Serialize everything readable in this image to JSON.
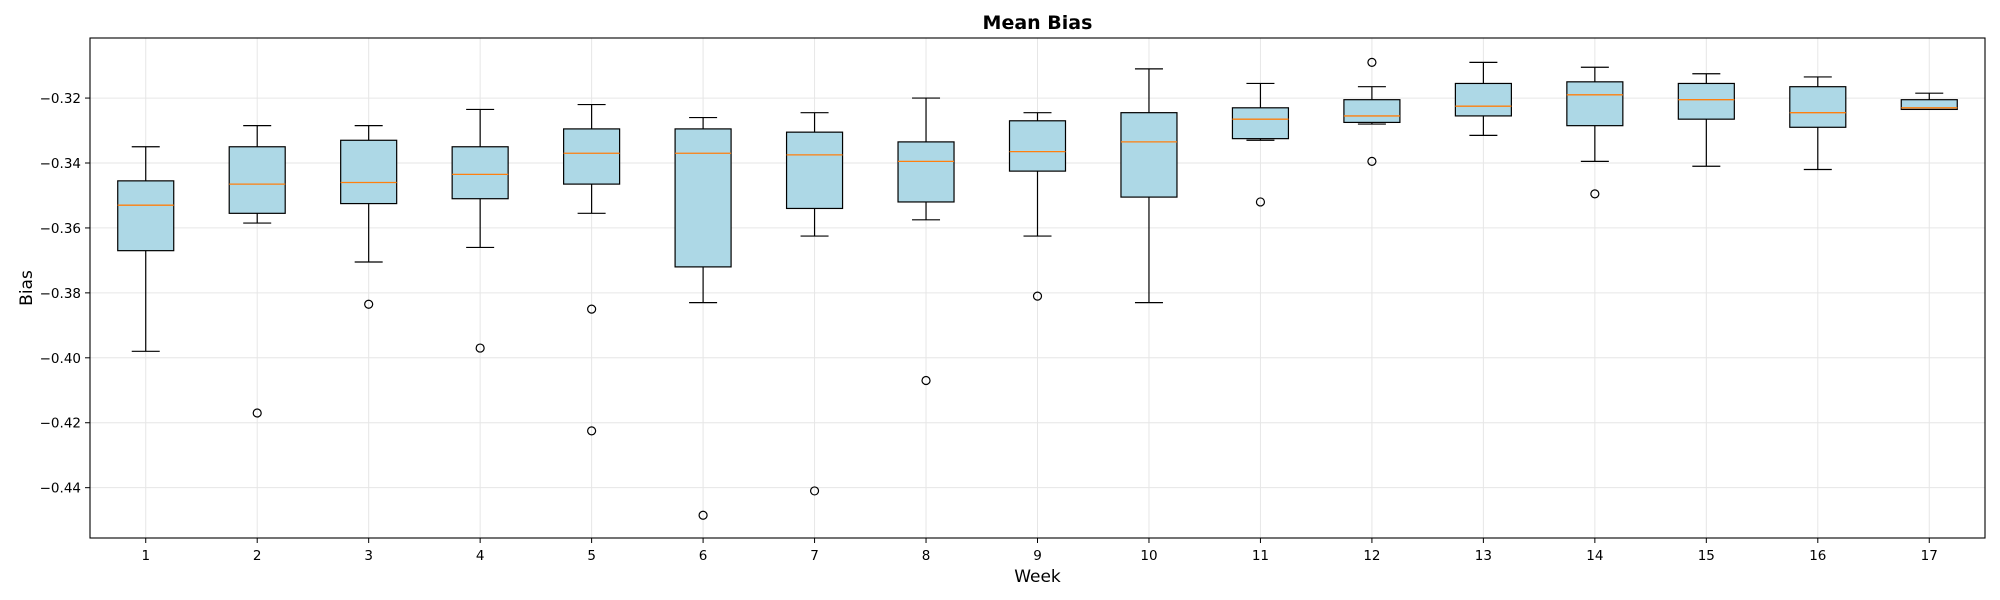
{
  "chart_data": {
    "type": "box",
    "title": "Mean Bias",
    "xlabel": "Week",
    "ylabel": "Bias",
    "ylim": [
      -0.4555,
      -0.3015
    ],
    "yticks": [
      -0.44,
      -0.42,
      -0.4,
      -0.38,
      -0.36,
      -0.34,
      -0.32
    ],
    "ytick_labels": [
      "−0.44",
      "−0.42",
      "−0.40",
      "−0.38",
      "−0.36",
      "−0.34",
      "−0.32"
    ],
    "grid": true,
    "colors": {
      "box_fill": "#add8e6",
      "median": "#ff7f0e",
      "edge": "#000000",
      "grid": "#e6e6e6"
    },
    "categories": [
      "1",
      "2",
      "3",
      "4",
      "5",
      "6",
      "7",
      "8",
      "9",
      "10",
      "11",
      "12",
      "13",
      "14",
      "15",
      "16",
      "17"
    ],
    "boxes": [
      {
        "whisker_low": -0.398,
        "q1": -0.367,
        "median": -0.353,
        "q3": -0.3455,
        "whisker_high": -0.335,
        "fliers": []
      },
      {
        "whisker_low": -0.3585,
        "q1": -0.3555,
        "median": -0.3465,
        "q3": -0.335,
        "whisker_high": -0.3285,
        "fliers": [
          -0.417
        ]
      },
      {
        "whisker_low": -0.3705,
        "q1": -0.3525,
        "median": -0.346,
        "q3": -0.333,
        "whisker_high": -0.3285,
        "fliers": [
          -0.3835
        ]
      },
      {
        "whisker_low": -0.366,
        "q1": -0.351,
        "median": -0.3435,
        "q3": -0.335,
        "whisker_high": -0.3235,
        "fliers": [
          -0.397
        ]
      },
      {
        "whisker_low": -0.3555,
        "q1": -0.3465,
        "median": -0.337,
        "q3": -0.3295,
        "whisker_high": -0.322,
        "fliers": [
          -0.385,
          -0.4225
        ]
      },
      {
        "whisker_low": -0.383,
        "q1": -0.372,
        "median": -0.337,
        "q3": -0.3295,
        "whisker_high": -0.326,
        "fliers": [
          -0.4485
        ]
      },
      {
        "whisker_low": -0.3625,
        "q1": -0.354,
        "median": -0.3375,
        "q3": -0.3305,
        "whisker_high": -0.3245,
        "fliers": [
          -0.441
        ]
      },
      {
        "whisker_low": -0.3575,
        "q1": -0.352,
        "median": -0.3395,
        "q3": -0.3335,
        "whisker_high": -0.32,
        "fliers": [
          -0.407
        ]
      },
      {
        "whisker_low": -0.3625,
        "q1": -0.3425,
        "median": -0.3365,
        "q3": -0.327,
        "whisker_high": -0.3245,
        "fliers": [
          -0.381
        ]
      },
      {
        "whisker_low": -0.383,
        "q1": -0.3505,
        "median": -0.3335,
        "q3": -0.3245,
        "whisker_high": -0.311,
        "fliers": []
      },
      {
        "whisker_low": -0.333,
        "q1": -0.3325,
        "median": -0.3265,
        "q3": -0.323,
        "whisker_high": -0.3155,
        "fliers": [
          -0.352
        ]
      },
      {
        "whisker_low": -0.328,
        "q1": -0.3275,
        "median": -0.3255,
        "q3": -0.3205,
        "whisker_high": -0.3165,
        "fliers": [
          -0.3395,
          -0.309
        ]
      },
      {
        "whisker_low": -0.3315,
        "q1": -0.3255,
        "median": -0.3225,
        "q3": -0.3155,
        "whisker_high": -0.309,
        "fliers": []
      },
      {
        "whisker_low": -0.3395,
        "q1": -0.3285,
        "median": -0.319,
        "q3": -0.315,
        "whisker_high": -0.3105,
        "fliers": [
          -0.3495
        ]
      },
      {
        "whisker_low": -0.341,
        "q1": -0.3265,
        "median": -0.3205,
        "q3": -0.3155,
        "whisker_high": -0.3125,
        "fliers": []
      },
      {
        "whisker_low": -0.342,
        "q1": -0.329,
        "median": -0.3245,
        "q3": -0.3165,
        "whisker_high": -0.3135,
        "fliers": []
      },
      {
        "whisker_low": -0.3235,
        "q1": -0.3235,
        "median": -0.323,
        "q3": -0.3205,
        "whisker_high": -0.3185,
        "fliers": []
      }
    ]
  }
}
